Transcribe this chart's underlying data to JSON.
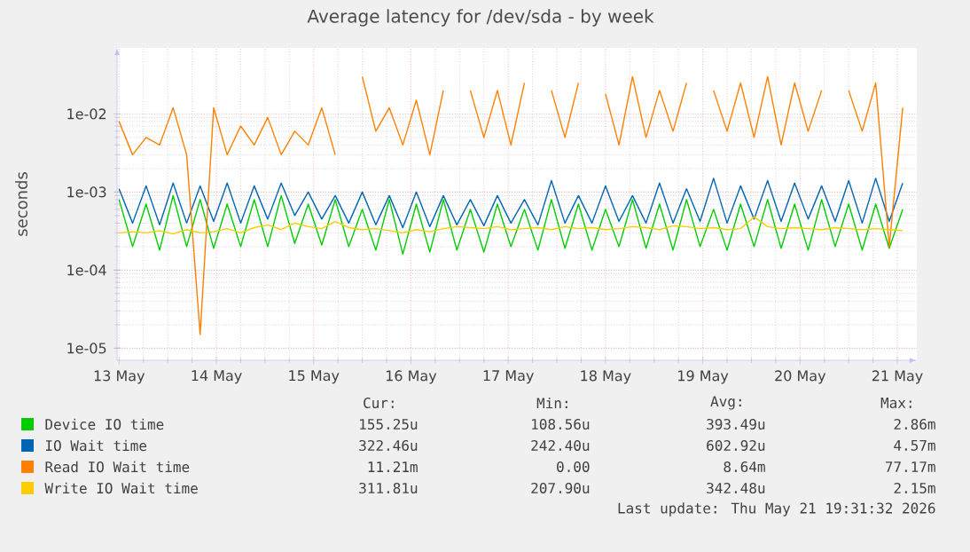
{
  "chart_data": {
    "type": "line",
    "title": "Average latency for /dev/sda - by week",
    "ylabel": "seconds",
    "x": [
      "2026-05-13T00:00",
      "2026-05-13T03:20",
      "2026-05-13T06:40",
      "2026-05-13T10:00",
      "2026-05-13T13:20",
      "2026-05-13T16:40",
      "2026-05-13T20:00",
      "2026-05-13T23:20",
      "2026-05-14T02:40",
      "2026-05-14T06:00",
      "2026-05-14T09:20",
      "2026-05-14T12:40",
      "2026-05-14T16:00",
      "2026-05-14T19:20",
      "2026-05-14T22:40",
      "2026-05-15T02:00",
      "2026-05-15T05:20",
      "2026-05-15T08:40",
      "2026-05-15T12:00",
      "2026-05-15T15:20",
      "2026-05-15T18:40",
      "2026-05-15T22:00",
      "2026-05-16T01:20",
      "2026-05-16T04:40",
      "2026-05-16T08:00",
      "2026-05-16T11:20",
      "2026-05-16T14:40",
      "2026-05-16T18:00",
      "2026-05-16T21:20",
      "2026-05-17T00:40",
      "2026-05-17T04:00",
      "2026-05-17T07:20",
      "2026-05-17T10:40",
      "2026-05-17T14:00",
      "2026-05-17T17:20",
      "2026-05-17T20:40",
      "2026-05-18T00:00",
      "2026-05-18T03:20",
      "2026-05-18T06:40",
      "2026-05-18T10:00",
      "2026-05-18T13:20",
      "2026-05-18T16:40",
      "2026-05-18T20:00",
      "2026-05-18T23:20",
      "2026-05-19T02:40",
      "2026-05-19T06:00",
      "2026-05-19T09:20",
      "2026-05-19T12:40",
      "2026-05-19T16:00",
      "2026-05-19T19:20",
      "2026-05-19T22:40",
      "2026-05-20T02:00",
      "2026-05-20T05:20",
      "2026-05-20T08:40",
      "2026-05-20T12:00",
      "2026-05-20T15:20",
      "2026-05-20T18:40",
      "2026-05-20T22:00",
      "2026-05-21T01:20"
    ],
    "series": [
      {
        "name": "Device IO time",
        "color": "#00cc00",
        "values": [
          0.0008,
          0.0002,
          0.0007,
          0.00018,
          0.0009,
          0.0002,
          0.0008,
          0.00019,
          0.0007,
          0.0002,
          0.0008,
          0.0002,
          0.0009,
          0.00022,
          0.0007,
          0.00021,
          0.0008,
          0.0002,
          0.0006,
          0.00018,
          0.0008,
          0.00016,
          0.0007,
          0.00017,
          0.0008,
          0.00018,
          0.0006,
          0.00017,
          0.0007,
          0.0002,
          0.0006,
          0.00018,
          0.0008,
          0.00019,
          0.0007,
          0.00018,
          0.0006,
          0.0002,
          0.0008,
          0.00019,
          0.0007,
          0.00018,
          0.0008,
          0.0002,
          0.0006,
          0.00018,
          0.0007,
          0.0002,
          0.0008,
          0.00019,
          0.0007,
          0.00018,
          0.0008,
          0.0002,
          0.0007,
          0.00018,
          0.0007,
          0.00019,
          0.0006
        ]
      },
      {
        "name": "IO Wait time",
        "color": "#0066b3",
        "values": [
          0.0011,
          0.0004,
          0.0012,
          0.00038,
          0.0013,
          0.0004,
          0.0012,
          0.00042,
          0.0013,
          0.0004,
          0.0012,
          0.00045,
          0.0013,
          0.0005,
          0.001,
          0.00045,
          0.0009,
          0.0004,
          0.001,
          0.00038,
          0.0009,
          0.00035,
          0.001,
          0.00036,
          0.0009,
          0.00038,
          0.0008,
          0.00037,
          0.0009,
          0.0004,
          0.0008,
          0.00038,
          0.0014,
          0.0004,
          0.0009,
          0.0004,
          0.0012,
          0.00042,
          0.0009,
          0.0004,
          0.0013,
          0.0004,
          0.0011,
          0.00042,
          0.0015,
          0.0004,
          0.0012,
          0.00045,
          0.0014,
          0.00042,
          0.0013,
          0.00045,
          0.0012,
          0.00042,
          0.0014,
          0.0004,
          0.0015,
          0.00042,
          0.0013
        ]
      },
      {
        "name": "Read IO Wait time",
        "color": "#ff8000",
        "values": [
          0.008,
          0.003,
          0.005,
          0.004,
          0.012,
          0.003,
          1.5e-05,
          0.012,
          0.003,
          0.007,
          0.004,
          0.009,
          0.003,
          0.006,
          0.004,
          0.012,
          0.003,
          null,
          0.03,
          0.006,
          0.012,
          0.004,
          0.015,
          0.003,
          0.02,
          null,
          0.02,
          0.005,
          0.02,
          0.004,
          0.025,
          null,
          0.02,
          0.005,
          0.025,
          null,
          0.018,
          0.004,
          0.03,
          0.005,
          0.02,
          0.006,
          0.025,
          null,
          0.02,
          0.006,
          0.025,
          0.005,
          0.03,
          0.004,
          0.025,
          0.006,
          0.02,
          null,
          0.02,
          0.006,
          0.025,
          0.0002,
          0.012
        ]
      },
      {
        "name": "Write IO Wait time",
        "color": "#ffcc00",
        "values": [
          0.0003,
          0.00031,
          0.0003,
          0.00032,
          0.00029,
          0.00033,
          0.0003,
          0.00031,
          0.00034,
          0.0003,
          0.00035,
          0.00038,
          0.00033,
          0.0004,
          0.00036,
          0.00034,
          0.00042,
          0.00035,
          0.00033,
          0.00034,
          0.00032,
          0.0003,
          0.00033,
          0.00031,
          0.00034,
          0.00036,
          0.00035,
          0.00034,
          0.00036,
          0.00033,
          0.00034,
          0.00035,
          0.00033,
          0.00036,
          0.00034,
          0.00035,
          0.00033,
          0.00034,
          0.00036,
          0.00035,
          0.00033,
          0.00037,
          0.00036,
          0.00034,
          0.00035,
          0.00033,
          0.00034,
          0.00048,
          0.00036,
          0.00034,
          0.00035,
          0.00034,
          0.00033,
          0.00035,
          0.00034,
          0.00033,
          0.00034,
          0.00033,
          0.00032
        ]
      }
    ],
    "xlim": [
      "2026-05-12T23:30",
      "2026-05-21T04:48"
    ],
    "ylim": [
      7e-06,
      0.07
    ],
    "xticks": [
      {
        "value": "2026-05-13",
        "label": "13 May"
      },
      {
        "value": "2026-05-14",
        "label": "14 May"
      },
      {
        "value": "2026-05-15",
        "label": "15 May"
      },
      {
        "value": "2026-05-16",
        "label": "16 May"
      },
      {
        "value": "2026-05-17",
        "label": "17 May"
      },
      {
        "value": "2026-05-18",
        "label": "18 May"
      },
      {
        "value": "2026-05-19",
        "label": "19 May"
      },
      {
        "value": "2026-05-20",
        "label": "20 May"
      },
      {
        "value": "2026-05-21",
        "label": "21 May"
      }
    ],
    "yticks": [
      {
        "value": 1e-05,
        "label": "1e-05"
      },
      {
        "value": 0.0001,
        "label": "1e-04"
      },
      {
        "value": 0.001,
        "label": "1e-03"
      },
      {
        "value": 0.01,
        "label": "1e-02"
      }
    ],
    "log": "y",
    "grid": true,
    "legend": "bottom",
    "annotations": [
      "Cur:",
      "Min:",
      "Avg:",
      "Max:",
      "155.25u",
      "108.56u",
      "393.49u",
      "2.86m",
      "322.46u",
      "242.40u",
      "602.92u",
      "4.57m",
      "11.21m",
      "0.00",
      "8.64m",
      "77.17m",
      "311.81u",
      "207.90u",
      "342.48u",
      "2.15m",
      "Last update: Thu May 21 19:31:32 2026"
    ]
  }
}
